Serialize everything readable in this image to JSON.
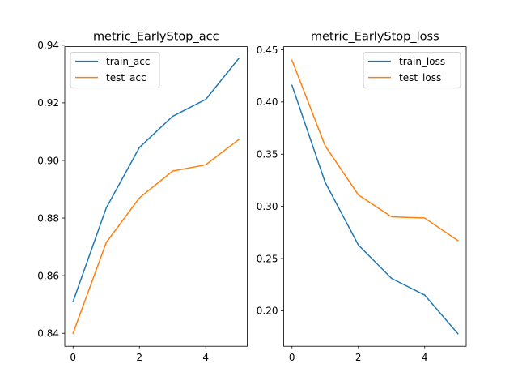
{
  "chart_data": [
    {
      "type": "line",
      "title": "metric_EarlyStop_acc",
      "xlabel": "",
      "ylabel": "",
      "x": [
        0,
        1,
        2,
        3,
        4,
        5
      ],
      "xlim": [
        -0.25,
        5.25
      ],
      "ylim": [
        0.8355,
        0.9395
      ],
      "xticks": [
        0,
        2,
        4
      ],
      "xtick_labels": [
        "0",
        "2",
        "4"
      ],
      "yticks": [
        0.84,
        0.86,
        0.88,
        0.9,
        0.92,
        0.94
      ],
      "ytick_labels": [
        "0.84",
        "0.86",
        "0.88",
        "0.90",
        "0.92",
        "0.94"
      ],
      "grid": false,
      "legend_position": "upper-left",
      "series": [
        {
          "name": "train_acc",
          "color": "#1f77b4",
          "values": [
            0.851,
            0.8835,
            0.9045,
            0.9153,
            0.9212,
            0.9355
          ]
        },
        {
          "name": "test_acc",
          "color": "#ff7f0e",
          "values": [
            0.84,
            0.8715,
            0.887,
            0.8963,
            0.8985,
            0.9073
          ]
        }
      ]
    },
    {
      "type": "line",
      "title": "metric_EarlyStop_loss",
      "xlabel": "",
      "ylabel": "",
      "x": [
        0,
        1,
        2,
        3,
        4,
        5
      ],
      "xlim": [
        -0.25,
        5.25
      ],
      "ylim": [
        0.166,
        0.453
      ],
      "xticks": [
        0,
        2,
        4
      ],
      "xtick_labels": [
        "0",
        "2",
        "4"
      ],
      "yticks": [
        0.2,
        0.25,
        0.3,
        0.35,
        0.4,
        0.45
      ],
      "ytick_labels": [
        "0.20",
        "0.25",
        "0.30",
        "0.35",
        "0.40",
        "0.45"
      ],
      "grid": false,
      "legend_position": "upper-right",
      "series": [
        {
          "name": "train_loss",
          "color": "#1f77b4",
          "values": [
            0.416,
            0.323,
            0.263,
            0.231,
            0.215,
            0.178
          ]
        },
        {
          "name": "test_loss",
          "color": "#ff7f0e",
          "values": [
            0.44,
            0.358,
            0.311,
            0.29,
            0.2888,
            0.2672
          ]
        }
      ]
    }
  ]
}
